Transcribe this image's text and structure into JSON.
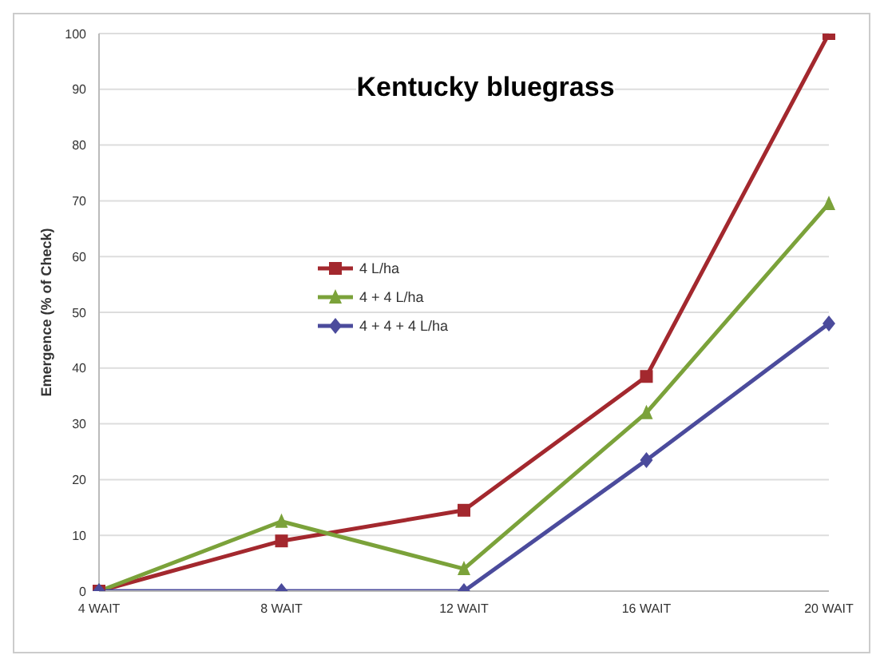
{
  "chart_data": {
    "type": "line",
    "title": "Kentucky bluegrass",
    "ylabel": "Emergence (% of Check)",
    "categories": [
      "4 WAIT",
      "8 WAIT",
      "12 WAIT",
      "16 WAIT",
      "20 WAIT"
    ],
    "series": [
      {
        "name": "4 L/ha",
        "color": "#a3282e",
        "marker": "square",
        "values": [
          0,
          9,
          14.5,
          38.5,
          100
        ]
      },
      {
        "name": "4 + 4 L/ha",
        "color": "#7ba23a",
        "marker": "triangle",
        "values": [
          0,
          12.5,
          4,
          32,
          69.5
        ]
      },
      {
        "name": "4 + 4 + 4 L/ha",
        "color": "#4b4b9c",
        "marker": "diamond",
        "values": [
          0,
          0,
          0,
          23.5,
          48
        ]
      }
    ],
    "ylim": [
      0,
      100
    ],
    "yticks": [
      0,
      10,
      20,
      30,
      40,
      50,
      60,
      70,
      80,
      90,
      100
    ],
    "grid": "y",
    "legend": "center",
    "line_style": "solid"
  }
}
